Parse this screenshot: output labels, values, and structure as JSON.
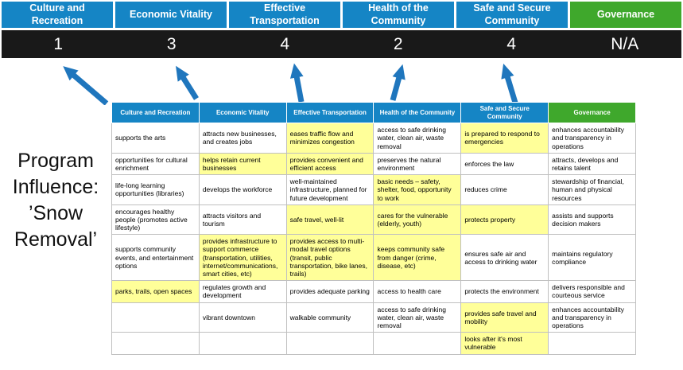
{
  "title": "Program Influence: ’Snow Removal’",
  "colors": {
    "pillar_blue": "#1585c5",
    "pillar_green": "#3fa82c",
    "score_bar": "#191919",
    "highlight_yellow": "#ffff99",
    "arrow_blue": "#1f76bd"
  },
  "pillars": [
    {
      "label": "Culture and Recreation",
      "score": "1",
      "accent": "blue"
    },
    {
      "label": "Economic Vitality",
      "score": "3",
      "accent": "blue"
    },
    {
      "label": "Effective Transportation",
      "score": "4",
      "accent": "blue"
    },
    {
      "label": "Health of the Community",
      "score": "2",
      "accent": "blue"
    },
    {
      "label": "Safe and Secure Community",
      "score": "4",
      "accent": "blue"
    },
    {
      "label": "Governance",
      "score": "N/A",
      "accent": "green"
    }
  ],
  "matrix": {
    "headers": [
      {
        "label": "Culture and Recreation",
        "accent": "blue"
      },
      {
        "label": "Economic Vitality",
        "accent": "blue"
      },
      {
        "label": "Effective Transportation",
        "accent": "blue"
      },
      {
        "label": "Health of the Community",
        "accent": "blue"
      },
      {
        "label": "Safe and Secure Community",
        "accent": "blue"
      },
      {
        "label": "Governance",
        "accent": "green"
      }
    ],
    "rows": [
      [
        {
          "text": "supports the arts",
          "hl": false
        },
        {
          "text": "attracts new businesses, and creates jobs",
          "hl": false
        },
        {
          "text": "eases traffic flow and minimizes congestion",
          "hl": true
        },
        {
          "text": "access to safe drinking water, clean air, waste removal",
          "hl": false
        },
        {
          "text": "is prepared to respond to emergencies",
          "hl": true
        },
        {
          "text": "enhances accountability and transparency in operations",
          "hl": false
        }
      ],
      [
        {
          "text": "opportunities for cultural enrichment",
          "hl": false
        },
        {
          "text": "helps retain current businesses",
          "hl": true
        },
        {
          "text": "provides convenient and efficient access",
          "hl": true
        },
        {
          "text": "preserves the natural environment",
          "hl": false
        },
        {
          "text": "enforces the law",
          "hl": false
        },
        {
          "text": "attracts, develops and retains talent",
          "hl": false
        }
      ],
      [
        {
          "text": "life-long learning opportunities (libraries)",
          "hl": false
        },
        {
          "text": "develops the workforce",
          "hl": false
        },
        {
          "text": "well-maintained infrastructure, planned for future development",
          "hl": false
        },
        {
          "text": "basic needs – safety, shelter, food, opportunity to work",
          "hl": true
        },
        {
          "text": "reduces crime",
          "hl": false
        },
        {
          "text": "stewardship of financial, human and physical resources",
          "hl": false
        }
      ],
      [
        {
          "text": "encourages healthy people (promotes active lifestyle)",
          "hl": false
        },
        {
          "text": "attracts visitors and tourism",
          "hl": false
        },
        {
          "text": "safe travel, well-lit",
          "hl": true
        },
        {
          "text": "cares for the vulnerable (elderly, youth)",
          "hl": true
        },
        {
          "text": "protects property",
          "hl": true
        },
        {
          "text": "assists and supports decision makers",
          "hl": false
        }
      ],
      [
        {
          "text": "supports community events, and entertainment options",
          "hl": false
        },
        {
          "text": "provides infrastructure to support commerce (transportation, utilities, internet/communications, smart cities, etc)",
          "hl": true
        },
        {
          "text": "provides access to multi-modal travel options (transit, public transportation, bike lanes, trails)",
          "hl": true
        },
        {
          "text": "keeps community safe from danger (crime, disease, etc)",
          "hl": true
        },
        {
          "text": "ensures safe air and access to drinking water",
          "hl": false
        },
        {
          "text": "maintains regulatory compliance",
          "hl": false
        }
      ],
      [
        {
          "text": "parks, trails, open spaces",
          "hl": true
        },
        {
          "text": "regulates growth and development",
          "hl": false
        },
        {
          "text": "provides adequate parking",
          "hl": false
        },
        {
          "text": "access to health care",
          "hl": false
        },
        {
          "text": "protects the environment",
          "hl": false
        },
        {
          "text": "delivers responsible and courteous service",
          "hl": false
        }
      ],
      [
        {
          "text": "",
          "hl": false
        },
        {
          "text": "vibrant downtown",
          "hl": false
        },
        {
          "text": "walkable community",
          "hl": false
        },
        {
          "text": "access to safe drinking water, clean air, waste removal",
          "hl": false
        },
        {
          "text": "provides safe travel and mobility",
          "hl": true
        },
        {
          "text": "enhances accountability and transparency in operations",
          "hl": false
        }
      ],
      [
        {
          "text": "",
          "hl": false
        },
        {
          "text": "",
          "hl": false
        },
        {
          "text": "",
          "hl": false
        },
        {
          "text": "",
          "hl": false
        },
        {
          "text": "looks after it's most vulnerable",
          "hl": true
        },
        {
          "text": "",
          "hl": false
        }
      ]
    ]
  }
}
